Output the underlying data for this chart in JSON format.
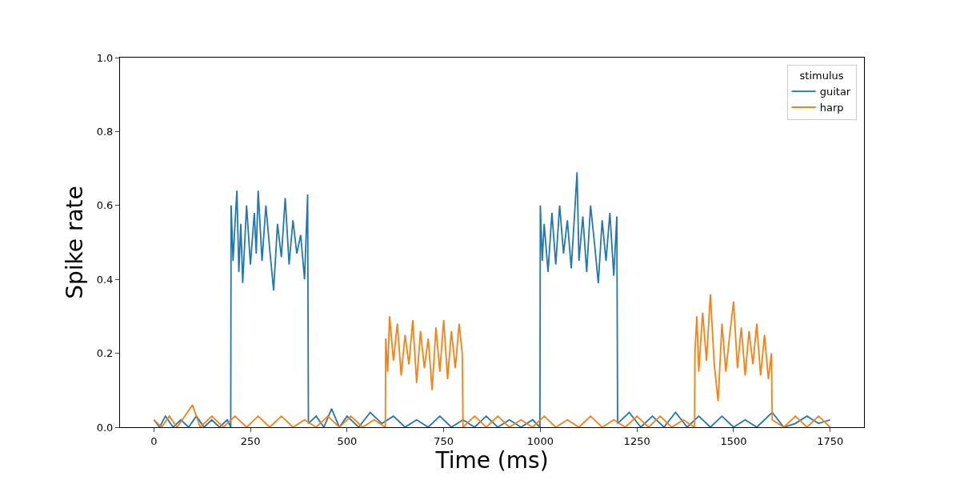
{
  "chart_data": {
    "type": "line",
    "xlabel": "Time (ms)",
    "ylabel": "Spike rate",
    "legend_title": "stimulus",
    "legend": "top right",
    "marker": "none",
    "line_style": "solid",
    "xlim": [
      -87.5,
      1837.5
    ],
    "xticks": [
      0,
      250,
      500,
      750,
      1000,
      1250,
      1500,
      1750
    ],
    "ylim": [
      0,
      1.0
    ],
    "yticks": [
      {
        "value": 0,
        "label": "0.0"
      },
      0.2,
      0.4,
      0.6,
      0.8,
      {
        "value": 1,
        "label": "1.0"
      }
    ],
    "series": [
      {
        "name": "guitar",
        "color": "#1f77b4",
        "x": [
          0,
          15,
          30,
          50,
          70,
          90,
          110,
          130,
          150,
          170,
          190,
          199,
          200,
          205,
          210,
          215,
          220,
          225,
          230,
          240,
          250,
          260,
          265,
          270,
          280,
          290,
          300,
          310,
          320,
          330,
          340,
          350,
          360,
          370,
          380,
          390,
          398,
          400,
          420,
          440,
          460,
          480,
          500,
          530,
          560,
          590,
          620,
          650,
          680,
          710,
          740,
          770,
          800,
          830,
          860,
          890,
          920,
          950,
          980,
          999,
          1000,
          1005,
          1010,
          1020,
          1030,
          1040,
          1050,
          1060,
          1070,
          1080,
          1090,
          1095,
          1100,
          1110,
          1120,
          1130,
          1140,
          1150,
          1160,
          1170,
          1180,
          1190,
          1198,
          1200,
          1230,
          1260,
          1290,
          1320,
          1350,
          1380,
          1410,
          1440,
          1470,
          1500,
          1530,
          1560,
          1600,
          1630,
          1660,
          1690,
          1720,
          1750
        ],
        "values": [
          0.02,
          0,
          0.03,
          0,
          0.02,
          0,
          0.03,
          0,
          0.02,
          0,
          0.02,
          0,
          0.6,
          0.45,
          0.55,
          0.64,
          0.42,
          0.55,
          0.39,
          0.6,
          0.44,
          0.58,
          0.47,
          0.64,
          0.45,
          0.6,
          0.48,
          0.37,
          0.55,
          0.46,
          0.62,
          0.44,
          0.56,
          0.47,
          0.52,
          0.4,
          0.63,
          0.01,
          0.03,
          0,
          0.05,
          0,
          0.03,
          0,
          0.04,
          0.01,
          0.03,
          0,
          0.02,
          0,
          0.03,
          0,
          0.02,
          0,
          0.03,
          0,
          0.02,
          0,
          0.02,
          0,
          0.6,
          0.45,
          0.55,
          0.42,
          0.58,
          0.44,
          0.6,
          0.47,
          0.56,
          0.43,
          0.6,
          0.69,
          0.45,
          0.57,
          0.42,
          0.6,
          0.5,
          0.39,
          0.56,
          0.45,
          0.58,
          0.41,
          0.57,
          0.01,
          0.04,
          0,
          0.03,
          0,
          0.04,
          0,
          0.03,
          0,
          0.03,
          0,
          0.02,
          0,
          0.04,
          0,
          0.01,
          0.03,
          0.01,
          0.02
        ]
      },
      {
        "name": "harp",
        "color": "#ff7f0e",
        "x": [
          0,
          20,
          40,
          60,
          80,
          100,
          120,
          150,
          180,
          210,
          240,
          270,
          300,
          330,
          360,
          390,
          420,
          450,
          480,
          510,
          540,
          570,
          599,
          600,
          605,
          610,
          620,
          630,
          640,
          650,
          660,
          670,
          680,
          690,
          700,
          710,
          720,
          730,
          740,
          750,
          760,
          770,
          780,
          790,
          798,
          800,
          830,
          860,
          890,
          920,
          950,
          980,
          1010,
          1040,
          1070,
          1100,
          1130,
          1160,
          1190,
          1220,
          1250,
          1280,
          1310,
          1340,
          1370,
          1399,
          1400,
          1405,
          1410,
          1420,
          1430,
          1440,
          1450,
          1460,
          1470,
          1480,
          1490,
          1500,
          1510,
          1520,
          1530,
          1540,
          1550,
          1560,
          1570,
          1580,
          1590,
          1598,
          1600,
          1630,
          1660,
          1690,
          1720,
          1750
        ],
        "values": [
          0.02,
          0,
          0.03,
          0,
          0.03,
          0.06,
          0,
          0.03,
          0,
          0.03,
          0,
          0.03,
          0,
          0.03,
          0,
          0.02,
          0,
          0.03,
          0,
          0.03,
          0,
          0.02,
          0,
          0.24,
          0.15,
          0.3,
          0.18,
          0.28,
          0.14,
          0.25,
          0.17,
          0.29,
          0.12,
          0.26,
          0.16,
          0.24,
          0.1,
          0.27,
          0.15,
          0.29,
          0.13,
          0.26,
          0.16,
          0.28,
          0.2,
          0,
          0.03,
          0,
          0.03,
          0,
          0.02,
          0,
          0.03,
          0,
          0.02,
          0,
          0.03,
          0,
          0.02,
          0,
          0.03,
          0,
          0.03,
          0,
          0.02,
          0,
          0.2,
          0.3,
          0.15,
          0.31,
          0.18,
          0.36,
          0.17,
          0.07,
          0.28,
          0.15,
          0.25,
          0.34,
          0.16,
          0.27,
          0.14,
          0.26,
          0.17,
          0.28,
          0.14,
          0.25,
          0.13,
          0.2,
          0.02,
          0,
          0.03,
          0,
          0.03,
          0
        ]
      }
    ]
  }
}
